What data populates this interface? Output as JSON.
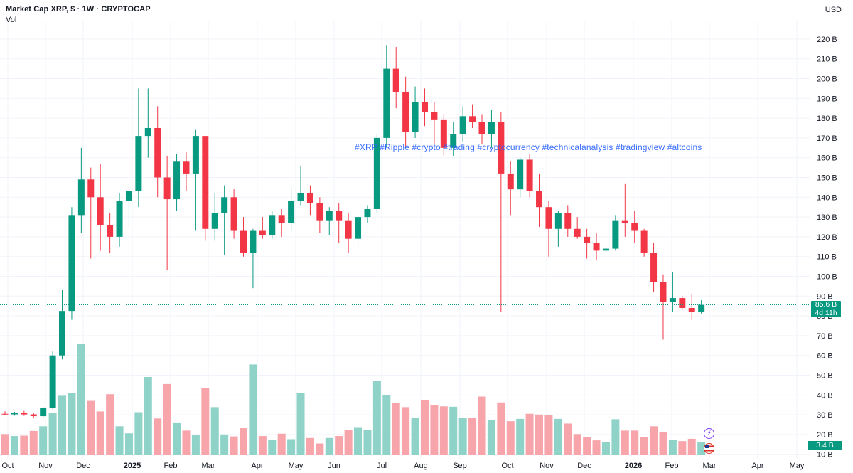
{
  "header": {
    "title": "Market Cap XRP, $ · 1W · CRYPTOCAP",
    "subtitle": "Vol",
    "currency": "USD"
  },
  "annotation": "#XRP #Ripple #crypto #trading #cryptocurrency #technicalanalysis #tradingview #altcoins",
  "price_tag": {
    "value": "85.6 B",
    "countdown": "4d 11h"
  },
  "volume_tag": {
    "value": "3.4 B"
  },
  "events": {
    "icon_1": "lightning-icon",
    "icon_2": "us-flag-icon"
  },
  "colors": {
    "up": "#089981",
    "down": "#f23645",
    "up_vol": "#8fd3c8",
    "down_vol": "#f7a5aa",
    "grid": "#f0f3fa",
    "last_price_line": "#089981"
  },
  "chart_data": {
    "type": "candlestick",
    "title": "Market Cap XRP, $ · 1W · CRYPTOCAP",
    "price_unit": "B USD",
    "y_axis": {
      "range": [
        10,
        225
      ],
      "ticks": [
        "10 B",
        "20 B",
        "30 B",
        "40 B",
        "50 B",
        "60 B",
        "70 B",
        "80 B",
        "90 B",
        "100 B",
        "110 B",
        "120 B",
        "130 B",
        "140 B",
        "150 B",
        "160 B",
        "170 B",
        "180 B",
        "190 B",
        "200 B",
        "210 B",
        "220 B"
      ]
    },
    "x_axis": {
      "labels": [
        "Oct",
        "Nov",
        "Dec",
        "2025",
        "Feb",
        "Mar",
        "Apr",
        "May",
        "Jun",
        "Jul",
        "Aug",
        "Sep",
        "Oct",
        "Nov",
        "Dec",
        "2026",
        "Feb",
        "Mar",
        "Apr",
        "May"
      ]
    },
    "last_price": 85.6,
    "last_volume": 3.4,
    "grid": true,
    "candles": [
      {
        "o": 30.5,
        "h": 31.8,
        "l": 29.8,
        "c": 30.3
      },
      {
        "o": 30.2,
        "h": 31.5,
        "l": 29.5,
        "c": 30.8
      },
      {
        "o": 30.8,
        "h": 32.0,
        "l": 29.5,
        "c": 30.2
      },
      {
        "o": 30.2,
        "h": 31.0,
        "l": 28.5,
        "c": 29.3
      },
      {
        "o": 29.3,
        "h": 34.0,
        "l": 28.8,
        "c": 33.5
      },
      {
        "o": 33.5,
        "h": 62.0,
        "l": 33.0,
        "c": 60.0
      },
      {
        "o": 60.0,
        "h": 93.0,
        "l": 58.0,
        "c": 82.5
      },
      {
        "o": 82.5,
        "h": 135.0,
        "l": 78.0,
        "c": 131.0
      },
      {
        "o": 131.0,
        "h": 165.0,
        "l": 122.0,
        "c": 149.0
      },
      {
        "o": 149.0,
        "h": 155.0,
        "l": 109.0,
        "c": 140.0
      },
      {
        "o": 140.0,
        "h": 157.0,
        "l": 113.0,
        "c": 126.0
      },
      {
        "o": 126.0,
        "h": 132.0,
        "l": 112.0,
        "c": 120.0
      },
      {
        "o": 120.0,
        "h": 142.0,
        "l": 115.0,
        "c": 138.0
      },
      {
        "o": 138.0,
        "h": 147.0,
        "l": 125.0,
        "c": 143.0
      },
      {
        "o": 143.0,
        "h": 195.0,
        "l": 135.0,
        "c": 171.0
      },
      {
        "o": 171.0,
        "h": 195.0,
        "l": 160.0,
        "c": 175.0
      },
      {
        "o": 175.0,
        "h": 186.0,
        "l": 140.0,
        "c": 150.0
      },
      {
        "o": 150.0,
        "h": 161.0,
        "l": 103.0,
        "c": 139.0
      },
      {
        "o": 139.0,
        "h": 162.0,
        "l": 133.0,
        "c": 158.0
      },
      {
        "o": 158.0,
        "h": 163.0,
        "l": 143.0,
        "c": 152.0
      },
      {
        "o": 152.0,
        "h": 174.0,
        "l": 123.0,
        "c": 171.0
      },
      {
        "o": 171.0,
        "h": 171.0,
        "l": 118.0,
        "c": 124.0
      },
      {
        "o": 124.0,
        "h": 142.0,
        "l": 118.0,
        "c": 132.0
      },
      {
        "o": 132.0,
        "h": 146.0,
        "l": 111.0,
        "c": 140.0
      },
      {
        "o": 140.0,
        "h": 144.0,
        "l": 119.0,
        "c": 123.0
      },
      {
        "o": 123.0,
        "h": 130.0,
        "l": 110.0,
        "c": 112.0
      },
      {
        "o": 112.0,
        "h": 124.0,
        "l": 94.0,
        "c": 123.0
      },
      {
        "o": 123.0,
        "h": 130.0,
        "l": 119.0,
        "c": 121.0
      },
      {
        "o": 121.0,
        "h": 133.0,
        "l": 119.0,
        "c": 131.0
      },
      {
        "o": 131.0,
        "h": 134.0,
        "l": 120.0,
        "c": 127.0
      },
      {
        "o": 127.0,
        "h": 145.0,
        "l": 123.0,
        "c": 138.0
      },
      {
        "o": 138.0,
        "h": 156.0,
        "l": 136.0,
        "c": 142.0
      },
      {
        "o": 142.0,
        "h": 146.0,
        "l": 131.0,
        "c": 137.0
      },
      {
        "o": 137.0,
        "h": 140.0,
        "l": 122.0,
        "c": 128.0
      },
      {
        "o": 128.0,
        "h": 135.0,
        "l": 121.0,
        "c": 133.0
      },
      {
        "o": 133.0,
        "h": 137.0,
        "l": 117.0,
        "c": 128.0
      },
      {
        "o": 128.0,
        "h": 132.0,
        "l": 112.0,
        "c": 119.0
      },
      {
        "o": 119.0,
        "h": 131.0,
        "l": 115.0,
        "c": 130.0
      },
      {
        "o": 130.0,
        "h": 136.0,
        "l": 127.0,
        "c": 134.0
      },
      {
        "o": 134.0,
        "h": 172.0,
        "l": 132.0,
        "c": 170.0
      },
      {
        "o": 170.0,
        "h": 217.0,
        "l": 165.0,
        "c": 205.0
      },
      {
        "o": 205.0,
        "h": 216.0,
        "l": 185.0,
        "c": 193.0
      },
      {
        "o": 193.0,
        "h": 201.0,
        "l": 165.0,
        "c": 173.0
      },
      {
        "o": 173.0,
        "h": 196.0,
        "l": 170.0,
        "c": 188.0
      },
      {
        "o": 188.0,
        "h": 195.0,
        "l": 176.0,
        "c": 183.0
      },
      {
        "o": 183.0,
        "h": 188.0,
        "l": 167.0,
        "c": 179.0
      },
      {
        "o": 179.0,
        "h": 182.0,
        "l": 161.0,
        "c": 165.0
      },
      {
        "o": 165.0,
        "h": 178.0,
        "l": 161.0,
        "c": 172.0
      },
      {
        "o": 172.0,
        "h": 186.0,
        "l": 168.0,
        "c": 181.0
      },
      {
        "o": 181.0,
        "h": 187.0,
        "l": 175.0,
        "c": 178.0
      },
      {
        "o": 178.0,
        "h": 182.0,
        "l": 167.0,
        "c": 172.0
      },
      {
        "o": 172.0,
        "h": 184.0,
        "l": 165.0,
        "c": 178.0
      },
      {
        "o": 178.0,
        "h": 183.0,
        "l": 82.0,
        "c": 152.0
      },
      {
        "o": 152.0,
        "h": 158.0,
        "l": 131.0,
        "c": 144.0
      },
      {
        "o": 144.0,
        "h": 160.0,
        "l": 140.0,
        "c": 159.0
      },
      {
        "o": 159.0,
        "h": 162.0,
        "l": 140.0,
        "c": 143.0
      },
      {
        "o": 143.0,
        "h": 152.0,
        "l": 125.0,
        "c": 135.0
      },
      {
        "o": 135.0,
        "h": 138.0,
        "l": 110.0,
        "c": 124.0
      },
      {
        "o": 124.0,
        "h": 133.0,
        "l": 115.0,
        "c": 132.0
      },
      {
        "o": 132.0,
        "h": 136.0,
        "l": 120.0,
        "c": 124.0
      },
      {
        "o": 124.0,
        "h": 130.0,
        "l": 119.0,
        "c": 120.0
      },
      {
        "o": 120.0,
        "h": 124.0,
        "l": 109.0,
        "c": 117.0
      },
      {
        "o": 117.0,
        "h": 122.0,
        "l": 108.0,
        "c": 113.0
      },
      {
        "o": 113.0,
        "h": 116.0,
        "l": 111.0,
        "c": 114.0
      },
      {
        "o": 114.0,
        "h": 131.0,
        "l": 113.0,
        "c": 128.0
      },
      {
        "o": 128.0,
        "h": 147.0,
        "l": 120.0,
        "c": 127.0
      },
      {
        "o": 127.0,
        "h": 133.0,
        "l": 117.0,
        "c": 123.0
      },
      {
        "o": 123.0,
        "h": 124.0,
        "l": 110.0,
        "c": 112.0
      },
      {
        "o": 112.0,
        "h": 117.0,
        "l": 92.0,
        "c": 97.0
      },
      {
        "o": 97.0,
        "h": 101.0,
        "l": 68.0,
        "c": 87.0
      },
      {
        "o": 87.0,
        "h": 102.0,
        "l": 82.0,
        "c": 89.0
      },
      {
        "o": 89.0,
        "h": 90.0,
        "l": 83.0,
        "c": 84.0
      },
      {
        "o": 84.0,
        "h": 91.0,
        "l": 78.0,
        "c": 82.0
      },
      {
        "o": 82.0,
        "h": 88.0,
        "l": 81.0,
        "c": 85.6
      }
    ],
    "volumes": [
      5.4,
      4.9,
      5.0,
      6.2,
      7.4,
      10.8,
      15.2,
      16.0,
      28.5,
      13.9,
      11.2,
      15.6,
      7.4,
      5.6,
      11.0,
      20.0,
      9.4,
      18.2,
      8.2,
      6.3,
      5.2,
      17.2,
      12.3,
      5.3,
      4.8,
      6.9,
      23.2,
      4.9,
      4.0,
      5.5,
      4.1,
      15.9,
      4.4,
      3.0,
      4.4,
      4.9,
      6.5,
      7.0,
      6.5,
      19.1,
      15.4,
      13.4,
      12.3,
      9.6,
      14.0,
      12.9,
      12.5,
      12.4,
      9.6,
      9.5,
      15.0,
      9.0,
      13.5,
      8.7,
      9.3,
      10.6,
      10.4,
      10.2,
      9.3,
      8.1,
      5.4,
      4.6,
      3.8,
      3.3,
      9.2,
      6.3,
      6.3,
      4.6,
      7.4,
      5.9,
      4.0,
      3.6,
      4.2,
      3.4
    ],
    "x_tick_positions": [
      11,
      64,
      117,
      186,
      240,
      293,
      362,
      416,
      470,
      537,
      592,
      647,
      714,
      769,
      822,
      891,
      945,
      998,
      1066,
      1121
    ],
    "y_tick_positions": [
      637,
      611,
      583,
      555,
      528,
      500,
      472,
      444,
      416,
      389,
      361,
      333,
      305,
      278,
      250,
      222,
      194,
      166,
      139,
      111,
      83,
      55
    ]
  }
}
